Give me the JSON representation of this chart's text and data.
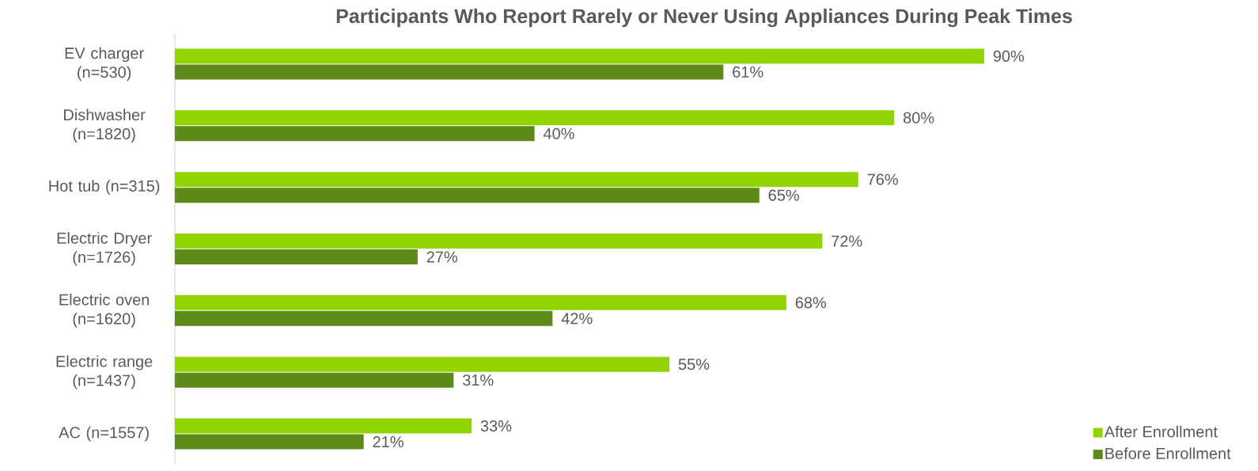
{
  "chart_data": {
    "type": "bar",
    "orientation": "horizontal",
    "title": "Participants Who Report Rarely or Never Using Appliances During Peak Times",
    "categories": [
      "EV charger (n=530)",
      "Dishwasher (n=1820)",
      "Hot tub (n=315)",
      "Electric Dryer (n=1726)",
      "Electric oven (n=1620)",
      "Electric range (n=1437)",
      "AC (n=1557)"
    ],
    "series": [
      {
        "name": "After Enrollment",
        "color": "#92d400",
        "values": [
          90,
          80,
          76,
          72,
          68,
          55,
          33
        ],
        "value_labels": [
          "90%",
          "80%",
          "76%",
          "72%",
          "68%",
          "55%",
          "33%"
        ]
      },
      {
        "name": "Before Enrollment",
        "color": "#5e8a1a",
        "values": [
          61,
          40,
          65,
          27,
          42,
          31,
          21
        ],
        "value_labels": [
          "61%",
          "40%",
          "65%",
          "27%",
          "42%",
          "31%",
          "21%"
        ]
      }
    ],
    "legend": "bottom right"
  }
}
